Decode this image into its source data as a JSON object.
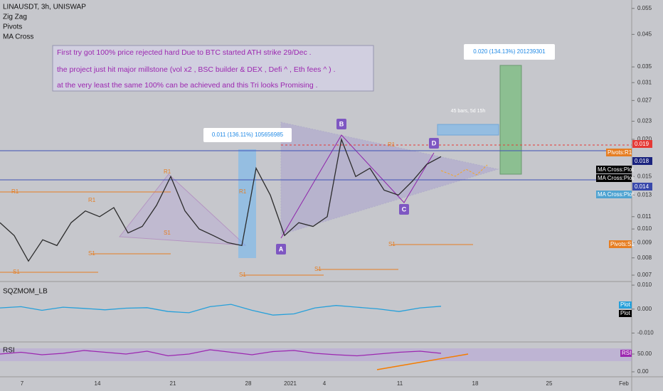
{
  "header": {
    "symbol": "LINAUSDT, 3h, UNISWAP",
    "indicators": [
      "Zig Zag",
      "Pivots",
      "MA Cross"
    ]
  },
  "note": [
    "First try got 100% price rejected hard Due to  BTC  started ATH strike 29/Dec .",
    "the project just hit major millstone (vol x2 , BSC builder & DEX , Defi ^ , Eth fees ^ ) .",
    "at the very least the same 100% can be achieved and this Tri looks Promising ."
  ],
  "measures": [
    "0.011 (136.11%) 105656985",
    "0.020 (134.13%) 201239301",
    "45 bars, 5d 15h"
  ],
  "points": [
    "A",
    "B",
    "C",
    "D"
  ],
  "pivot_labels": [
    "R1",
    "R1",
    "R1",
    "R1",
    "R1",
    "S1",
    "S1",
    "S1",
    "S1",
    "S1",
    "S1"
  ],
  "price_tags": [
    "0.019",
    "Pivots:R1",
    "0.018",
    "MA Cross:Plot",
    "MA Cross:Plot",
    "0.014",
    "MA Cross:Plot",
    "Pivots:S1",
    "Plot",
    "Plot",
    "RSI"
  ],
  "x_labels": [
    "7",
    "14",
    "21",
    "28",
    "2021",
    "4",
    "11",
    "18",
    "25",
    "Feb"
  ],
  "chart_data": [
    {
      "type": "line",
      "color": "#2b2b2b",
      "log_scale": true,
      "ylim": [
        0.0067,
        0.0587
      ],
      "yticks": [
        0.055,
        0.045,
        0.035,
        0.031,
        0.027,
        0.023,
        {
          "value": 0.02,
          "label": "0.020"
        },
        0.015,
        0.013,
        0.011,
        {
          "value": 0.01,
          "label": "0.010"
        },
        0.009,
        0.008,
        0.007
      ],
      "values": [
        0.0105,
        0.0095,
        0.0078,
        0.0092,
        0.0088,
        0.0105,
        0.0115,
        0.011,
        0.0118,
        0.0097,
        0.0102,
        0.012,
        0.015,
        0.0115,
        0.01,
        0.0095,
        0.009,
        0.0088,
        0.016,
        0.013,
        0.0095,
        0.0105,
        0.0102,
        0.011,
        0.02,
        0.015,
        0.016,
        0.0135,
        0.013,
        0.0145,
        0.0165,
        0.0175
      ]
    },
    {
      "type": "line",
      "title": "SQZMOM_LB",
      "color": "#26a0da",
      "ylim": [
        -0.0134,
        0.0118
      ],
      "yticks": [
        {
          "value": 0.01,
          "label": "0.010"
        },
        {
          "value": 0,
          "label": "0.000"
        },
        {
          "value": -0.01,
          "label": "-0.010"
        }
      ],
      "values": [
        0.0005,
        0.001,
        -0.0005,
        0.0008,
        0.0003,
        -0.0003,
        0.0004,
        0.0006,
        -0.001,
        -0.0015,
        0.001,
        0.002,
        -0.0005,
        -0.0025,
        -0.002,
        0.0005,
        0.0015,
        0.0008,
        0.0001,
        -0.001,
        0.0005,
        0.0012
      ]
    },
    {
      "type": "line",
      "title": "RSI",
      "color": "#9c27b0",
      "ylim": [
        -14,
        86
      ],
      "yticks": [
        {
          "value": 50,
          "label": "50.00"
        },
        {
          "value": 0,
          "label": "0.00"
        }
      ],
      "values": [
        50,
        55,
        48,
        52,
        60,
        55,
        50,
        58,
        45,
        50,
        62,
        55,
        48,
        57,
        60,
        52,
        48,
        45,
        50,
        55,
        58,
        52
      ]
    }
  ]
}
